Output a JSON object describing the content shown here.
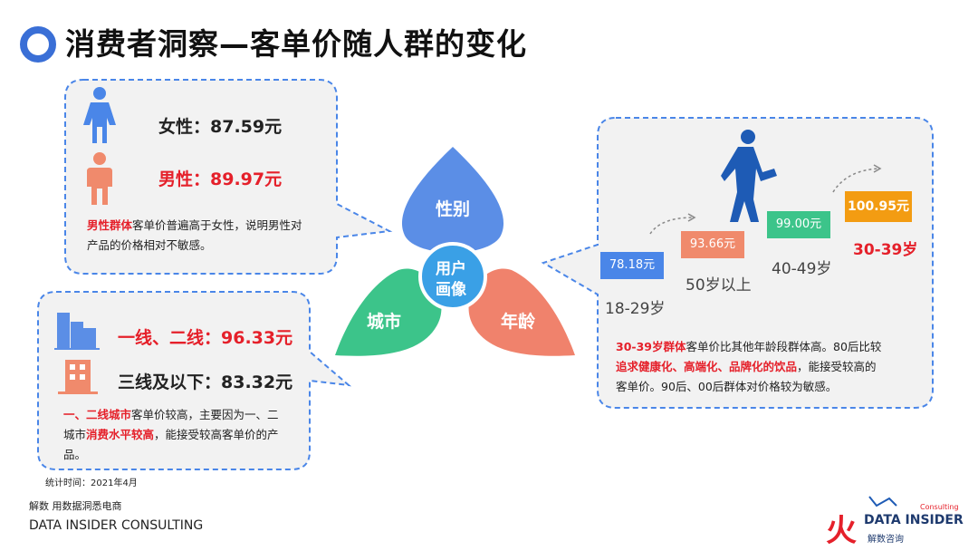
{
  "title": "消费者洞察—客单价随人群的变化",
  "center": {
    "label_line1": "用户",
    "label_line2": "画像"
  },
  "petals": {
    "gender": "性别",
    "city": "城市",
    "age": "年龄"
  },
  "gender": {
    "female": "女性：87.59元",
    "male": "男性：89.97元",
    "desc_highlight": "男性群体",
    "desc_rest_1": "客单价普遍高于女性，说明男性对",
    "desc_line2": "产品的价格相对不敏感。"
  },
  "city": {
    "tier12": "一线、二线：96.33元",
    "tier3": "三线及以下：83.32元",
    "desc_highlight1": "一、二线城市",
    "desc_rest1": "客单价较高，主要因为一、二",
    "desc_line2_pre": "城市",
    "desc_highlight2": "消费水平较高",
    "desc_line2_rest": "，能接受较高客单价的产",
    "desc_line3": "品。"
  },
  "age": {
    "steps": [
      {
        "value": "78.18元",
        "label": "18-29岁",
        "color": "#4a86e8"
      },
      {
        "value": "93.66元",
        "label": "50岁以上",
        "color": "#f08a6c"
      },
      {
        "value": "99.00元",
        "label": "40-49岁",
        "color": "#3cc48a"
      },
      {
        "value": "100.95元",
        "label": "30-39岁",
        "color": "#f39c12"
      }
    ],
    "desc_highlight1": "30-39岁群体",
    "desc_rest1": "客单价比其他年龄段群体高。80后比较",
    "desc_highlight2": "追求健康化、高端化、品牌化的饮品",
    "desc_rest2": "，能接受较高的",
    "desc_line3": "客单价。90后、00后群体对价格较为敏感。"
  },
  "footer": {
    "stat_time": "统计时间：2021年4月",
    "brand_cn": "解数 用数据洞悉电商",
    "brand_en": "DATA INSIDER CONSULTING",
    "logo_text": "DATA INSIDER",
    "logo_sub": "解数咨询",
    "logo_small": "Consulting"
  },
  "colors": {
    "accent_blue": "#3a6fd6",
    "red": "#e5202a",
    "petal_blue": "#5b8ee6",
    "petal_green": "#3cc48a",
    "petal_orange": "#f0826c",
    "center": "#3aa0e6"
  }
}
